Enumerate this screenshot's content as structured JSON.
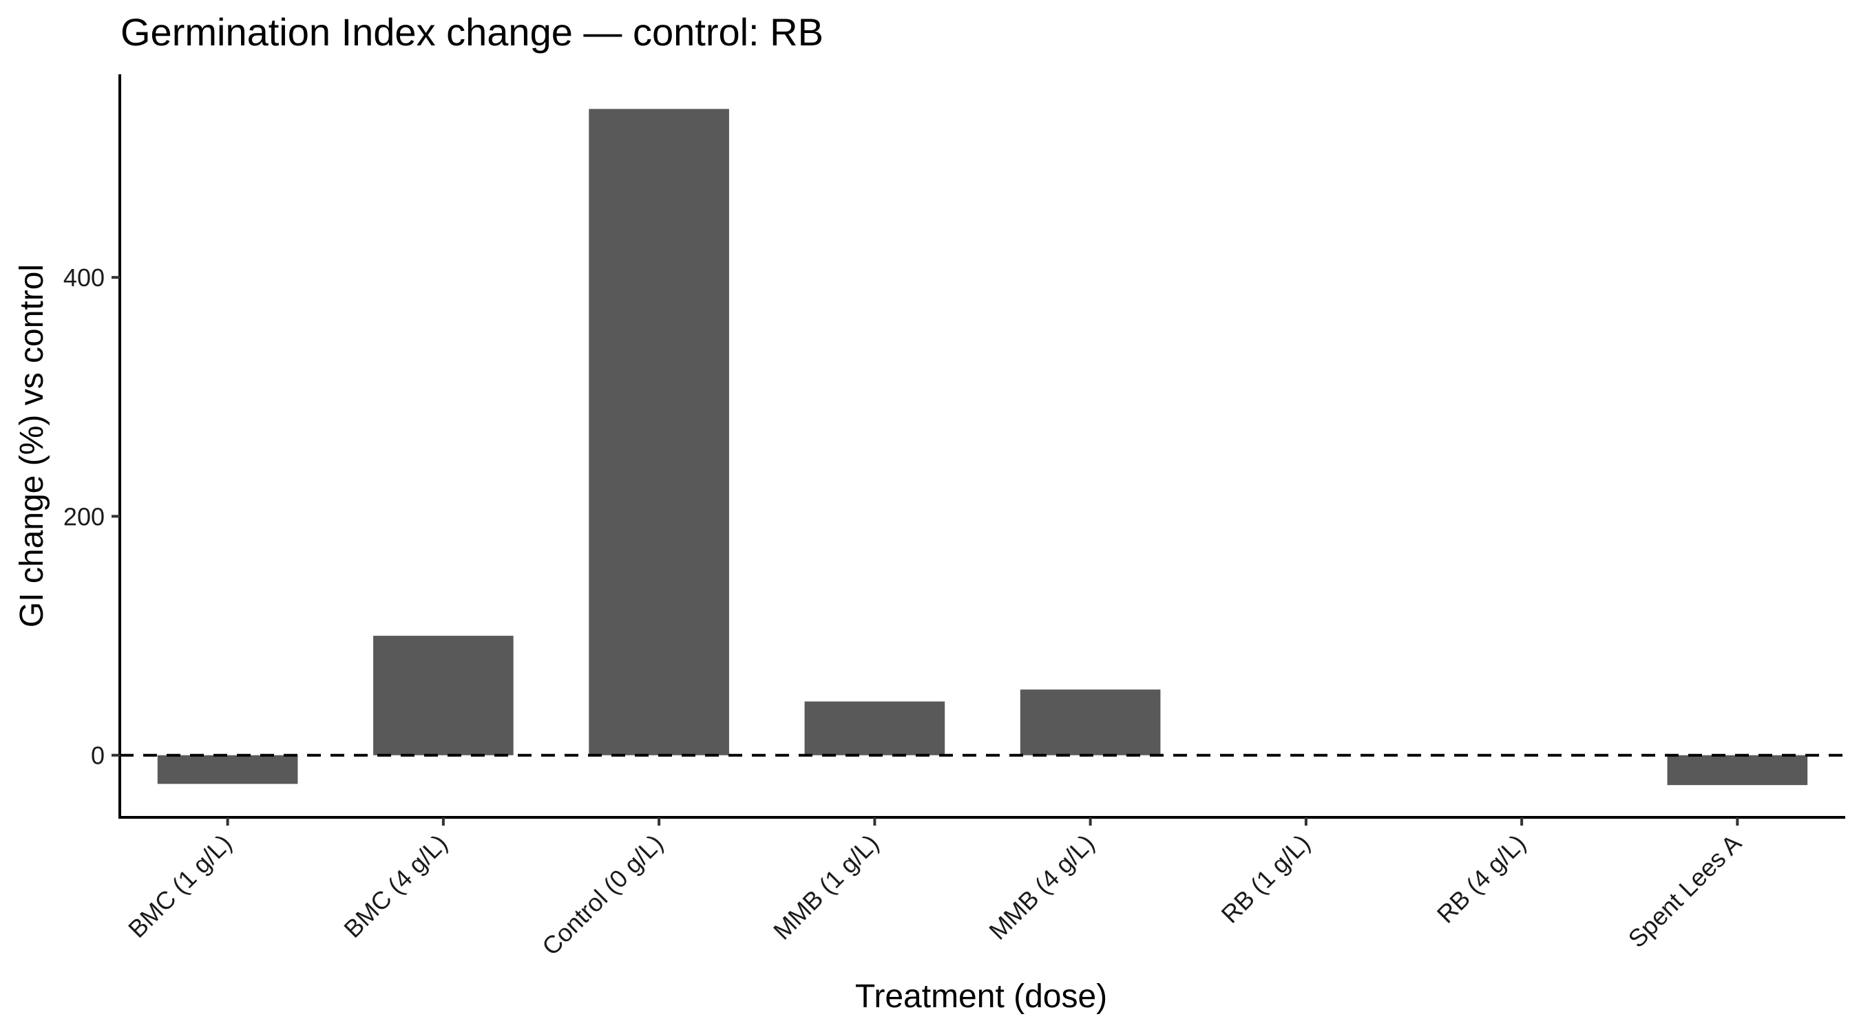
{
  "chart_data": {
    "type": "bar",
    "title": "Germination Index change — control: RB",
    "xlabel": "Treatment (dose)",
    "ylabel": "GI change (%) vs control",
    "categories": [
      "BMC (1 g/L)",
      "BMC (4 g/L)",
      "Control (0 g/L)",
      "MMB (1 g/L)",
      "MMB (4 g/L)",
      "RB (1 g/L)",
      "RB (4 g/L)",
      "Spent Lees A"
    ],
    "values": [
      -24,
      100,
      541,
      45,
      55,
      0,
      0,
      -25
    ],
    "ylim": [
      -52,
      570
    ],
    "yticks": [
      0,
      200,
      400
    ],
    "reference_line": {
      "y": 0,
      "style": "dashed"
    },
    "bar_color": "#595959",
    "grid": false,
    "legend": "none"
  }
}
